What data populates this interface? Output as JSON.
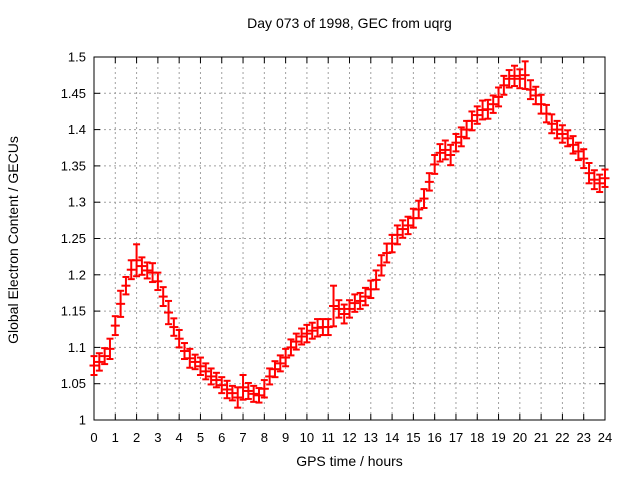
{
  "chart_data": {
    "type": "scatter",
    "subtype": "errorbar",
    "title": "Day 073 of 1998, GEC from uqrg",
    "xlabel": "GPS time / hours",
    "ylabel": "Global Electron Content / GECUs",
    "xlim": [
      0,
      24
    ],
    "ylim": [
      1.0,
      1.5
    ],
    "grid": true,
    "legend": "none",
    "marker": "plus-with-error-bars",
    "point_color": "#ff0000",
    "grid_color": "#a0a0a0",
    "axis_color": "#000000",
    "text_color": "#000000",
    "background_color": "#ffffff",
    "x_ticks": [
      0,
      1,
      2,
      3,
      4,
      5,
      6,
      7,
      8,
      9,
      10,
      11,
      12,
      13,
      14,
      15,
      16,
      17,
      18,
      19,
      20,
      21,
      22,
      23,
      24
    ],
    "y_ticks": [
      1.0,
      1.05,
      1.1,
      1.15,
      1.2,
      1.25,
      1.3,
      1.35,
      1.4,
      1.45,
      1.5
    ],
    "y_tick_labels": [
      "1",
      "1.05",
      "1.1",
      "1.15",
      "1.2",
      "1.25",
      "1.3",
      "1.35",
      "1.4",
      "1.45",
      "1.5"
    ],
    "x": [
      0,
      0.25,
      0.5,
      0.75,
      1,
      1.25,
      1.5,
      1.75,
      2,
      2.25,
      2.5,
      2.75,
      3,
      3.25,
      3.5,
      3.75,
      4,
      4.25,
      4.5,
      4.75,
      5,
      5.25,
      5.5,
      5.75,
      6,
      6.25,
      6.5,
      6.75,
      7,
      7.25,
      7.5,
      7.75,
      8,
      8.25,
      8.5,
      8.75,
      9,
      9.25,
      9.5,
      9.75,
      10,
      10.25,
      10.5,
      10.75,
      11,
      11.25,
      11.5,
      11.75,
      12,
      12.25,
      12.5,
      12.75,
      13,
      13.25,
      13.5,
      13.75,
      14,
      14.25,
      14.5,
      14.75,
      15,
      15.25,
      15.5,
      15.75,
      16,
      16.25,
      16.5,
      16.75,
      17,
      17.25,
      17.5,
      17.75,
      18,
      18.25,
      18.5,
      18.75,
      19,
      19.25,
      19.5,
      19.75,
      20,
      20.25,
      20.5,
      20.75,
      21,
      21.25,
      21.5,
      21.75,
      22,
      22.25,
      22.5,
      22.75,
      23,
      23.25,
      23.5,
      23.75,
      24
    ],
    "values": [
      1.075,
      1.08,
      1.088,
      1.098,
      1.13,
      1.16,
      1.185,
      1.207,
      1.22,
      1.212,
      1.206,
      1.203,
      1.191,
      1.17,
      1.148,
      1.128,
      1.112,
      1.095,
      1.085,
      1.08,
      1.074,
      1.067,
      1.06,
      1.055,
      1.048,
      1.042,
      1.037,
      1.031,
      1.045,
      1.04,
      1.036,
      1.034,
      1.043,
      1.06,
      1.07,
      1.078,
      1.086,
      1.1,
      1.108,
      1.115,
      1.119,
      1.123,
      1.127,
      1.128,
      1.128,
      1.157,
      1.153,
      1.146,
      1.153,
      1.161,
      1.164,
      1.17,
      1.18,
      1.193,
      1.213,
      1.23,
      1.243,
      1.255,
      1.263,
      1.268,
      1.278,
      1.29,
      1.305,
      1.328,
      1.352,
      1.368,
      1.372,
      1.365,
      1.382,
      1.39,
      1.4,
      1.412,
      1.42,
      1.427,
      1.428,
      1.435,
      1.445,
      1.461,
      1.47,
      1.474,
      1.47,
      1.475,
      1.455,
      1.447,
      1.435,
      1.422,
      1.408,
      1.4,
      1.394,
      1.388,
      1.379,
      1.37,
      1.36,
      1.34,
      1.331,
      1.326,
      1.333
    ],
    "errors": [
      0.013,
      0.012,
      0.011,
      0.014,
      0.013,
      0.018,
      0.012,
      0.013,
      0.022,
      0.012,
      0.011,
      0.013,
      0.012,
      0.013,
      0.016,
      0.012,
      0.012,
      0.011,
      0.013,
      0.01,
      0.012,
      0.011,
      0.011,
      0.01,
      0.011,
      0.012,
      0.01,
      0.014,
      0.017,
      0.011,
      0.011,
      0.01,
      0.012,
      0.011,
      0.011,
      0.011,
      0.012,
      0.011,
      0.011,
      0.011,
      0.012,
      0.011,
      0.012,
      0.011,
      0.011,
      0.028,
      0.012,
      0.013,
      0.012,
      0.012,
      0.011,
      0.012,
      0.012,
      0.013,
      0.014,
      0.013,
      0.012,
      0.013,
      0.012,
      0.012,
      0.013,
      0.012,
      0.013,
      0.012,
      0.013,
      0.012,
      0.013,
      0.014,
      0.012,
      0.013,
      0.012,
      0.013,
      0.012,
      0.013,
      0.013,
      0.012,
      0.013,
      0.013,
      0.012,
      0.014,
      0.013,
      0.019,
      0.013,
      0.012,
      0.013,
      0.012,
      0.013,
      0.012,
      0.012,
      0.011,
      0.012,
      0.012,
      0.013,
      0.014,
      0.013,
      0.012,
      0.012
    ]
  }
}
